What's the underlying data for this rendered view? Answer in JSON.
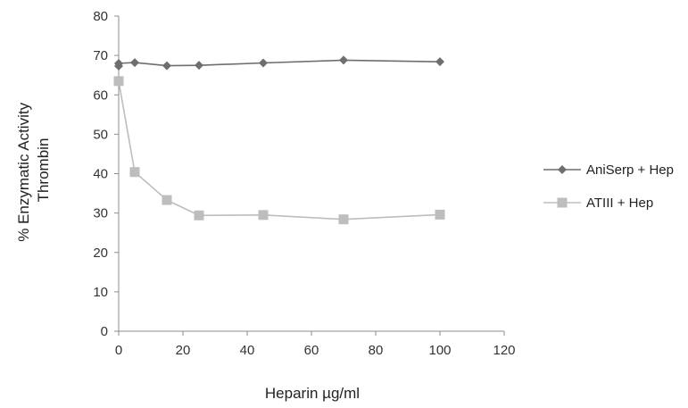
{
  "chart_data": {
    "type": "line",
    "xlabel": "Heparin µg/ml",
    "ylabel": [
      "% Enzymatic Activity",
      "Thrombin"
    ],
    "xlim": [
      0,
      120
    ],
    "ylim": [
      0,
      80
    ],
    "x_ticks": [
      0,
      20,
      40,
      60,
      80,
      100,
      120
    ],
    "y_ticks": [
      0,
      10,
      20,
      30,
      40,
      50,
      60,
      70,
      80
    ],
    "grid": false,
    "legend_position": "right",
    "series": [
      {
        "name": "AniSerp + Hep",
        "marker": "diamond",
        "color": "#6e6e6e",
        "x": [
          0,
          0,
          5,
          15,
          25,
          45,
          70,
          100
        ],
        "y": [
          67.3,
          68.0,
          68.2,
          67.4,
          67.5,
          68.1,
          68.8,
          68.4
        ]
      },
      {
        "name": "ATIII + Hep",
        "marker": "square",
        "color": "#bdbdbd",
        "x": [
          0,
          5,
          15,
          25,
          45,
          70,
          100
        ],
        "y": [
          63.5,
          40.4,
          33.3,
          29.4,
          29.5,
          28.4,
          29.6
        ]
      }
    ]
  }
}
